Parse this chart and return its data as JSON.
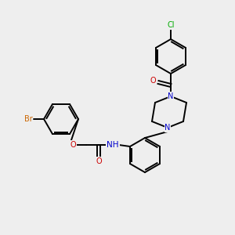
{
  "background_color": "#eeeeee",
  "bond_color": "#000000",
  "atom_colors": {
    "N": "#0000cc",
    "O": "#cc0000",
    "Br": "#cc6600",
    "Cl": "#00aa00",
    "H": "#555555"
  },
  "figsize": [
    3.0,
    3.0
  ],
  "dpi": 100,
  "lw": 1.4,
  "fs": 7.0
}
